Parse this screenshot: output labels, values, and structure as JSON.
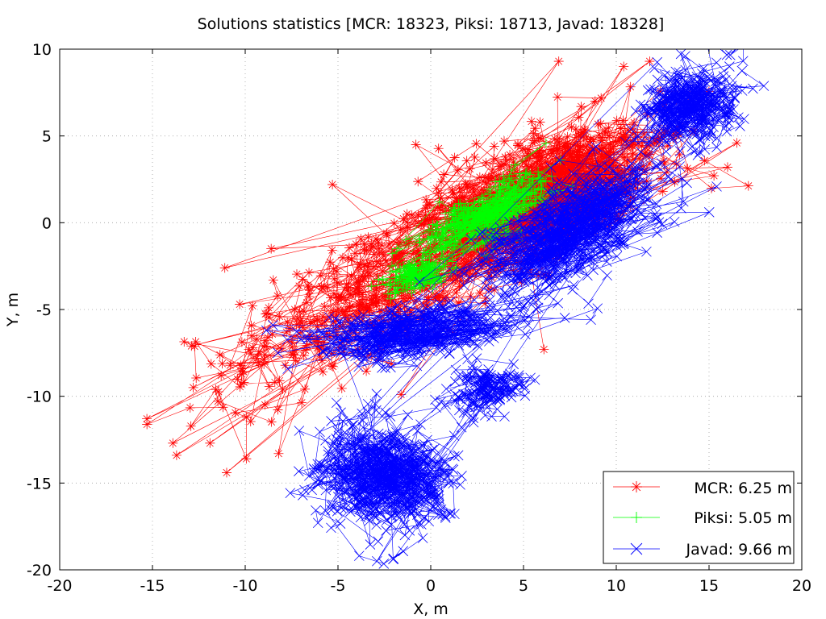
{
  "chart_data": {
    "type": "scatter",
    "title": "Solutions statistics [MCR: 18323, Piksi: 18713, Javad: 18328]",
    "xlabel": "X, m",
    "ylabel": "Y, m",
    "xlim": [
      -20,
      20
    ],
    "ylim": [
      -20,
      10
    ],
    "xticks": [
      -20,
      -15,
      -10,
      -5,
      0,
      5,
      10,
      15,
      20
    ],
    "yticks": [
      -20,
      -15,
      -10,
      -5,
      0,
      5,
      10
    ],
    "grid": true,
    "legend_position": "bottom-right",
    "series": [
      {
        "name": "MCR",
        "legend_label": "MCR: 6.25 m",
        "color": "#ff0000",
        "marker": "asterisk",
        "connected": true,
        "clusters": [
          {
            "center": [
              4.5,
              0.5
            ],
            "spread": [
              4.5,
              2.2
            ],
            "angle_deg": 30,
            "count": 900
          },
          {
            "center": [
              8.0,
              3.0
            ],
            "spread": [
              3.5,
              2.2
            ],
            "angle_deg": 28,
            "count": 350
          },
          {
            "center": [
              -3.0,
              -4.0
            ],
            "spread": [
              4.0,
              2.5
            ],
            "angle_deg": 30,
            "count": 250
          },
          {
            "center": [
              -9.0,
              -7.5
            ],
            "spread": [
              3.5,
              3.0
            ],
            "angle_deg": 30,
            "count": 90
          }
        ],
        "outliers": [
          [
            -15.3,
            -11.3
          ],
          [
            -13.9,
            -12.7
          ],
          [
            -13.7,
            -13.4
          ],
          [
            -12.8,
            -9.5
          ],
          [
            -11.9,
            -12.7
          ],
          [
            -11.0,
            -14.4
          ],
          [
            -8.2,
            -13.3
          ],
          [
            -12.9,
            -7.1
          ],
          [
            -11.1,
            -2.6
          ],
          [
            -10.3,
            -4.7
          ],
          [
            -8.6,
            -1.5
          ],
          [
            -5.3,
            2.2
          ],
          [
            11.8,
            9.3
          ],
          [
            16.5,
            4.6
          ],
          [
            16.0,
            3.2
          ],
          [
            10.4,
            9.0
          ],
          [
            6.9,
            9.3
          ],
          [
            -1.6,
            -9.9
          ],
          [
            6.1,
            -7.3
          ],
          [
            -0.8,
            4.5
          ]
        ]
      },
      {
        "name": "Piksi",
        "legend_label": "Piksi: 5.05 m",
        "color": "#00ff00",
        "marker": "plus",
        "connected": true,
        "clusters": [
          {
            "center": [
              3.0,
              0.5
            ],
            "spread": [
              2.5,
              0.9
            ],
            "angle_deg": 32,
            "count": 420
          },
          {
            "center": [
              -0.5,
              -3.0
            ],
            "spread": [
              1.4,
              0.6
            ],
            "angle_deg": 25,
            "count": 160
          }
        ],
        "outliers": []
      },
      {
        "name": "Javad",
        "legend_label": "Javad: 9.66 m",
        "color": "#0000ff",
        "marker": "cross",
        "connected": true,
        "clusters": [
          {
            "center": [
              7.5,
              -0.5
            ],
            "spread": [
              4.0,
              1.6
            ],
            "angle_deg": 30,
            "count": 700
          },
          {
            "center": [
              14.0,
              6.5
            ],
            "spread": [
              1.8,
              1.5
            ],
            "angle_deg": 35,
            "count": 420
          },
          {
            "center": [
              -0.5,
              -6.2
            ],
            "spread": [
              4.0,
              1.1
            ],
            "angle_deg": 8,
            "count": 450
          },
          {
            "center": [
              -2.5,
              -14.5
            ],
            "spread": [
              2.4,
              2.2
            ],
            "angle_deg": 0,
            "count": 650
          },
          {
            "center": [
              3.0,
              -9.5
            ],
            "spread": [
              1.6,
              0.9
            ],
            "angle_deg": 15,
            "count": 150
          }
        ],
        "outliers": [
          [
            -2.9,
            -19.5
          ],
          [
            -6.9,
            -15.7
          ],
          [
            -6.3,
            -14.4
          ],
          [
            16.1,
            9.0
          ],
          [
            3.3,
            -10.0
          ]
        ]
      }
    ]
  }
}
